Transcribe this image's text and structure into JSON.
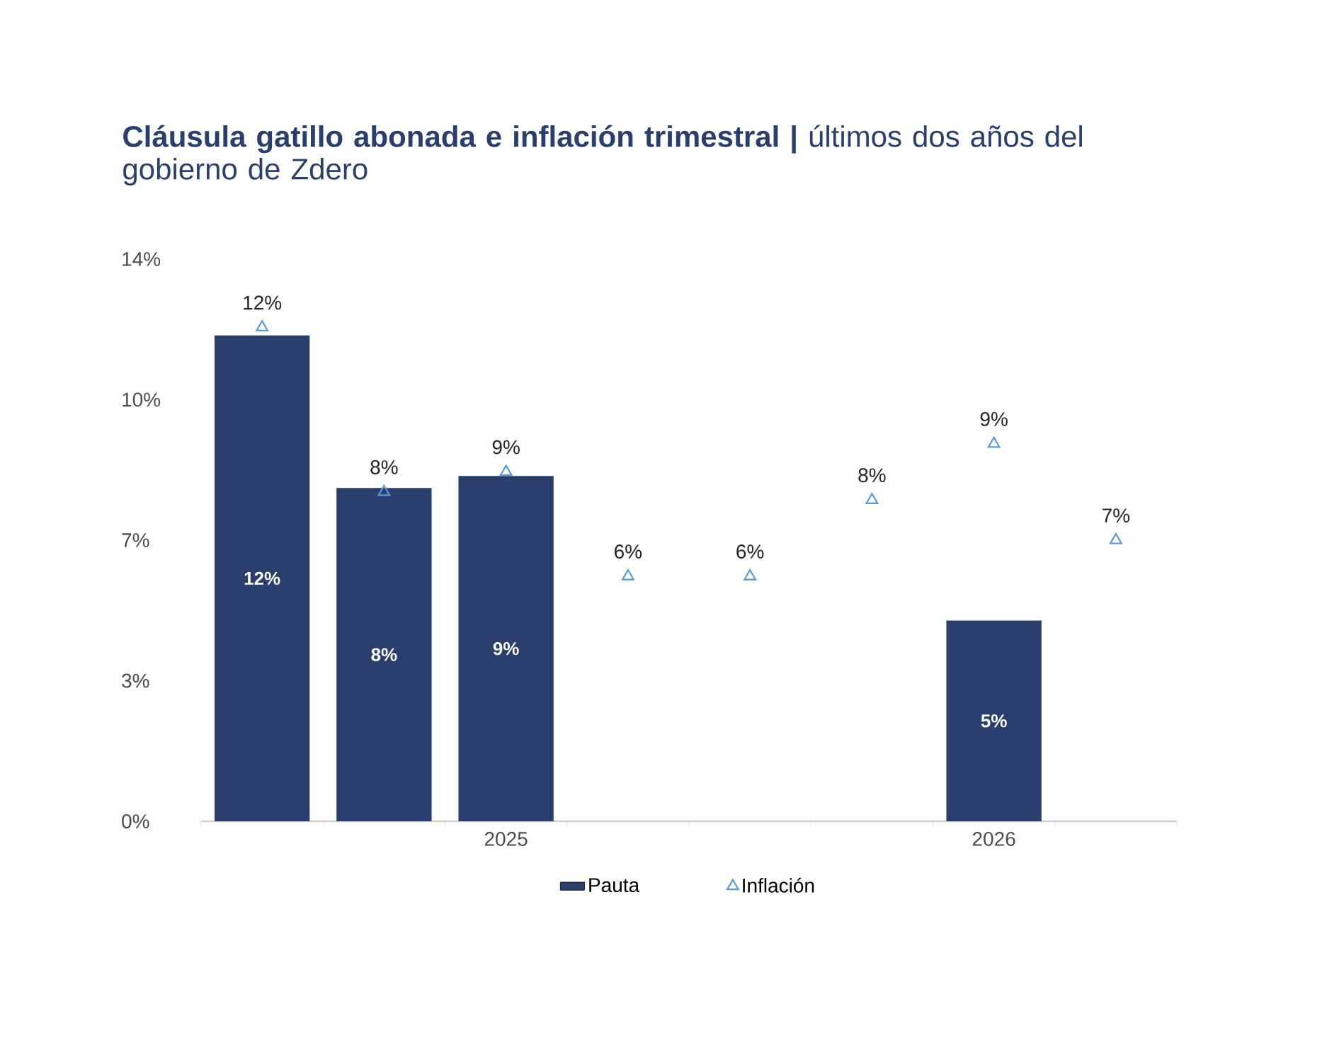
{
  "chart_data": {
    "type": "bar",
    "title": "**Cláusula gatillo abonada e inflación trimestral |** últimos dos años del gobierno de Zdero",
    "categories": [
      null,
      null,
      "2025",
      null,
      null,
      null,
      "2026",
      null
    ],
    "series": [
      {
        "name": "Pauta",
        "color": "#2b3f6e",
        "values": [
          12.1,
          8.3,
          8.6,
          null,
          null,
          null,
          5.0,
          null
        ],
        "value_labels": [
          "12%",
          "8%",
          "9%",
          null,
          null,
          null,
          "5%",
          null
        ]
      },
      {
        "name": "Inflación",
        "type": "scatter",
        "marker": "triangle",
        "color": "#5b9bd5",
        "values": [
          12.3,
          8.2,
          8.7,
          6.1,
          6.1,
          8.0,
          9.4,
          7.0
        ],
        "value_labels": [
          "12%",
          "8%",
          "9%",
          "6%",
          "6%",
          "8%",
          "9%",
          "7%"
        ]
      }
    ],
    "ylim": [
      0,
      14
    ],
    "yticks": [
      {
        "value": 0,
        "label": "0%"
      },
      {
        "value": 3.5,
        "label": "3%"
      },
      {
        "value": 7,
        "label": "7%"
      },
      {
        "value": 10.5,
        "label": "10%"
      },
      {
        "value": 14,
        "label": "14%"
      }
    ],
    "grid": false,
    "legend": "bottom"
  }
}
